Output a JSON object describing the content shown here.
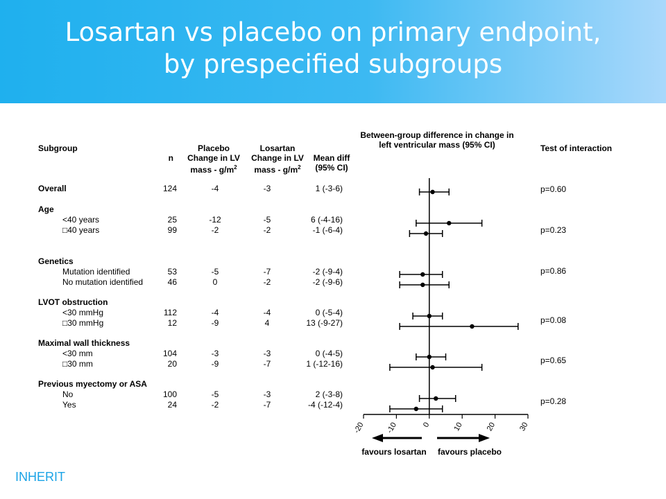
{
  "slide": {
    "title_line1": "Losartan vs placebo on primary endpoint,",
    "title_line2": "by prespecified subgroups",
    "brand": "INHERIT"
  },
  "table": {
    "col_subgroup": "Subgroup",
    "col_n": "n",
    "col_placebo_1": "Placebo",
    "col_placebo_2": "Change in LV",
    "col_placebo_3": "mass - g/m",
    "col_losartan_1": "Losartan",
    "col_losartan_2": "Change in LV",
    "col_losartan_3": "mass - g/m",
    "sup": "2",
    "col_mean_1": "Mean diff",
    "col_mean_2": "(95% CI)",
    "col_interaction": "Test of interaction",
    "plot_title_1": "Between-group difference in change in",
    "plot_title_2": "left ventricular mass (95% CI)",
    "rows": [
      {
        "label": "Overall",
        "bold": true,
        "n": "124",
        "placebo": "-4",
        "losartan": "-3",
        "diff": "1 (-3-6)"
      },
      {
        "label": "Age",
        "bold": true
      },
      {
        "label": "<40 years",
        "n": "25",
        "placebo": "-12",
        "losartan": "-5",
        "diff": "6 (-4-16)"
      },
      {
        "label": "□40 years",
        "n": "99",
        "placebo": "-2",
        "losartan": "-2",
        "diff": "-1 (-6-4)"
      },
      {
        "label": "Genetics",
        "bold": true
      },
      {
        "label": "Mutation identified",
        "n": "53",
        "placebo": "-5",
        "losartan": "-7",
        "diff": "-2 (-9-4)"
      },
      {
        "label": "No mutation identified",
        "n": "46",
        "placebo": "0",
        "losartan": "-2",
        "diff": "-2 (-9-6)"
      },
      {
        "label": "LVOT obstruction",
        "bold": true
      },
      {
        "label": "<30 mmHg",
        "n": "112",
        "placebo": "-4",
        "losartan": "-4",
        "diff": "0 (-5-4)"
      },
      {
        "label": "□30 mmHg",
        "n": "12",
        "placebo": "-9",
        "losartan": "4",
        "diff": "13 (-9-27)"
      },
      {
        "label": "Maximal wall thickness",
        "bold": true
      },
      {
        "label": "<30 mm",
        "n": "104",
        "placebo": "-3",
        "losartan": "-3",
        "diff": "0 (-4-5)"
      },
      {
        "label": "□30 mm",
        "n": "20",
        "placebo": "-9",
        "losartan": "-7",
        "diff": "1 (-12-16)"
      },
      {
        "label": "Previous myectomy or ASA",
        "bold": true
      },
      {
        "label": "No",
        "n": "100",
        "placebo": "-5",
        "losartan": "-3",
        "diff": "2 (-3-8)"
      },
      {
        "label": "Yes",
        "n": "24",
        "placebo": "-2",
        "losartan": "-7",
        "diff": "-4 (-12-4)"
      }
    ],
    "interaction": [
      "p=0.60",
      "p=0.23",
      "p=0.86",
      "p=0.08",
      "p=0.65",
      "p=0.28"
    ]
  },
  "chart_data": {
    "type": "scatter",
    "subtype": "forest",
    "title": "Between-group difference in change in left ventricular mass (95% CI)",
    "xlim": [
      -20,
      30
    ],
    "xticks": [
      -20,
      -10,
      0,
      10,
      20,
      30
    ],
    "xticklabels": [
      "-20",
      "-10",
      "0",
      "10",
      "20",
      "30"
    ],
    "series": [
      {
        "points": [
          {
            "label": "Overall",
            "est": 1,
            "lo": -3,
            "hi": 6
          },
          {
            "label": "<40 years",
            "est": 6,
            "lo": -4,
            "hi": 16
          },
          {
            "label": "□40 years",
            "est": -1,
            "lo": -6,
            "hi": 4
          },
          {
            "label": "Mutation identified",
            "est": -2,
            "lo": -9,
            "hi": 4
          },
          {
            "label": "No mutation identified",
            "est": -2,
            "lo": -9,
            "hi": 6
          },
          {
            "label": "<30 mmHg",
            "est": 0,
            "lo": -5,
            "hi": 4
          },
          {
            "label": "□30 mmHg",
            "est": 13,
            "lo": -9,
            "hi": 27
          },
          {
            "label": "<30 mm",
            "est": 0,
            "lo": -4,
            "hi": 5
          },
          {
            "label": "□30 mm",
            "est": 1,
            "lo": -12,
            "hi": 16
          },
          {
            "label": "No",
            "est": 2,
            "lo": -3,
            "hi": 8
          },
          {
            "label": "Yes",
            "est": -4,
            "lo": -12,
            "hi": 4
          }
        ]
      }
    ],
    "favours_left": "favours losartan",
    "favours_right": "favours placebo",
    "grid": false
  }
}
